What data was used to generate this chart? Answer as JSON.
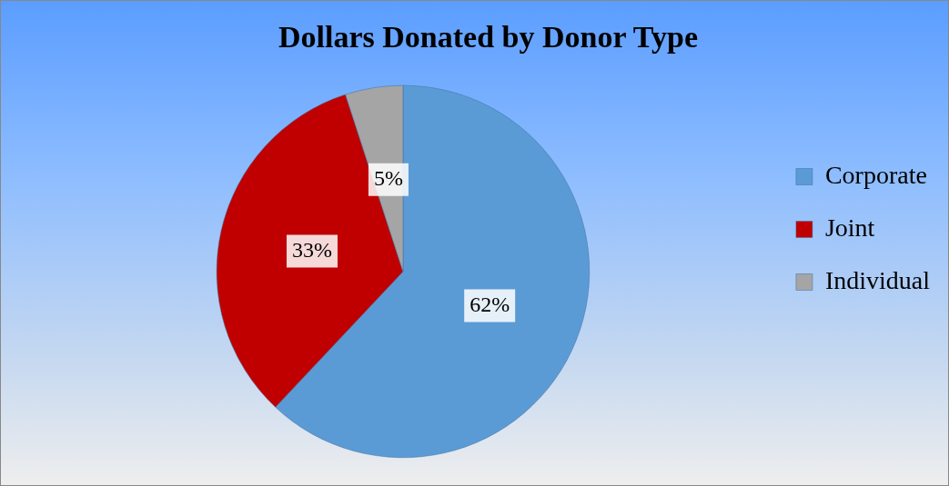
{
  "chart_data": {
    "type": "pie",
    "title": "Dollars Donated by Donor Type",
    "categories": [
      "Corporate",
      "Joint",
      "Individual"
    ],
    "values": [
      62,
      33,
      5
    ],
    "colors": [
      "#5b9bd5",
      "#c00000",
      "#a5a5a5"
    ],
    "value_labels": [
      "62%",
      "33%",
      "5%"
    ],
    "legend": "right"
  }
}
